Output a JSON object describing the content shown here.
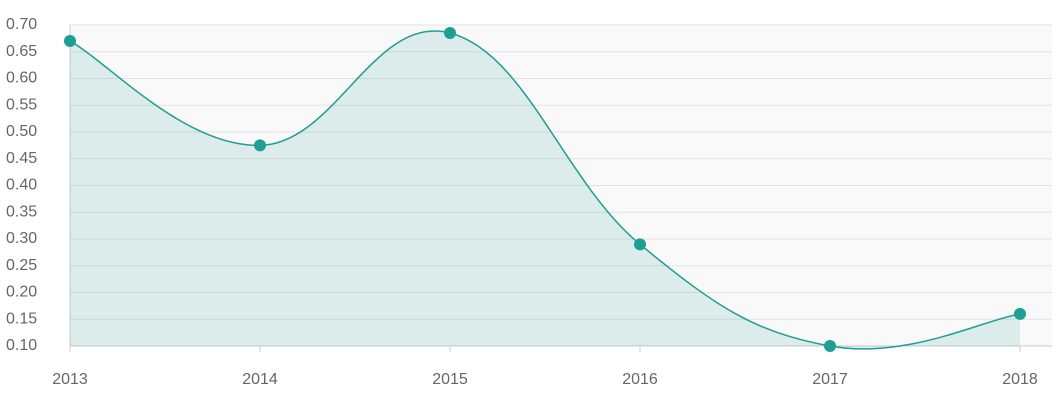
{
  "chart_data": {
    "type": "area",
    "categories": [
      "2013",
      "2014",
      "2015",
      "2016",
      "2017",
      "2018"
    ],
    "series": [
      {
        "color": "#1f9e93",
        "values": [
          0.67,
          0.475,
          0.685,
          0.29,
          0.1,
          0.16
        ]
      }
    ],
    "ylim": [
      0.1,
      0.7
    ],
    "yticks": [
      {
        "value": 0.1,
        "label": "0.10"
      },
      0.15,
      {
        "value": 0.2,
        "label": "0.20"
      },
      0.25,
      {
        "value": 0.3,
        "label": "0.30"
      },
      0.35,
      {
        "value": 0.4,
        "label": "0.40"
      },
      0.45,
      {
        "value": 0.5,
        "label": "0.50"
      },
      0.55,
      {
        "value": 0.6,
        "label": "0.60"
      },
      0.65,
      {
        "value": 0.7,
        "label": "0.70"
      }
    ],
    "grid": true
  }
}
